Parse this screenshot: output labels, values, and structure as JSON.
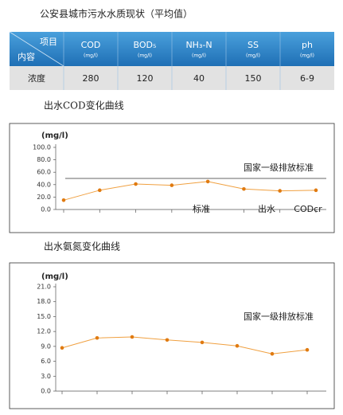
{
  "title": "公安县城市污水水质现状（平均值）",
  "table": {
    "corner": {
      "top": "项目",
      "bottom": "内容"
    },
    "columns": [
      {
        "name": "COD",
        "unit": "(mg/l)"
      },
      {
        "name": "BOD₅",
        "unit": "(mg/l)"
      },
      {
        "name": "NH₃-N",
        "unit": "(mg/l)"
      },
      {
        "name": "SS",
        "unit": "(mg/l)"
      },
      {
        "name": "ph",
        "unit": "(mg/l)"
      }
    ],
    "rows": [
      [
        "浓度",
        "280",
        "120",
        "40",
        "150",
        "6-9"
      ]
    ]
  },
  "chart_data": [
    {
      "type": "line",
      "title": "出水COD变化曲线",
      "y_label": "(mg/l)",
      "categories": [
        null,
        null,
        null,
        null,
        null,
        null,
        null,
        null
      ],
      "values": [
        15,
        31,
        41,
        39,
        45,
        33,
        30,
        31
      ],
      "color": "#f0a040",
      "ylim": [
        0,
        100
      ],
      "yticks": [
        {
          "value": 0,
          "label": "0.0"
        },
        {
          "value": 20,
          "label": "20.0"
        },
        {
          "value": 40,
          "label": "40.0"
        },
        {
          "value": 60,
          "label": "60.0"
        },
        {
          "value": 80,
          "label": "80.0"
        },
        {
          "value": 100,
          "label": "100.0"
        }
      ],
      "reference_line": {
        "value": 50,
        "label": "国家一级排放标准"
      },
      "annotations": [
        "标准",
        "出水",
        "CODcr"
      ]
    },
    {
      "type": "line",
      "title": "出水氨氮变化曲线",
      "y_label": "(mg/l)",
      "categories": [
        null,
        null,
        null,
        null,
        null,
        null,
        null,
        null
      ],
      "values": [
        8.7,
        10.7,
        10.9,
        10.3,
        9.8,
        9.1,
        7.5,
        8.3
      ],
      "color": "#f0a040",
      "ylim": [
        0,
        21
      ],
      "yticks": [
        {
          "value": 0,
          "label": "0.0"
        },
        {
          "value": 3,
          "label": "3.0"
        },
        {
          "value": 6,
          "label": "6.0"
        },
        {
          "value": 9,
          "label": "9.0"
        },
        {
          "value": 12,
          "label": "12.0"
        },
        {
          "value": 15,
          "label": "15.0"
        },
        {
          "value": 18,
          "label": "18.0"
        },
        {
          "value": 21,
          "label": "21.0"
        }
      ],
      "annotations": [
        "国家一级排放标准"
      ]
    }
  ]
}
